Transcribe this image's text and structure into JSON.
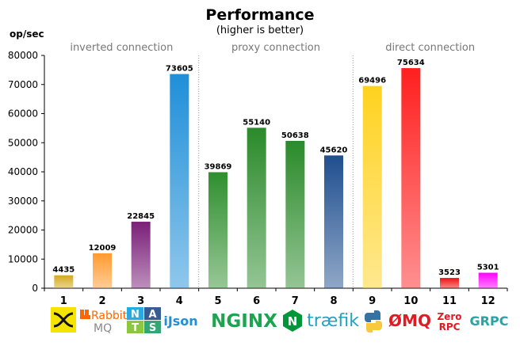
{
  "chart_data": {
    "type": "bar",
    "title": "Performance",
    "subtitle": "(higher is better)",
    "ylabel": "op/sec",
    "ylim": [
      0,
      80000
    ],
    "yticks": [
      0,
      10000,
      20000,
      30000,
      40000,
      50000,
      60000,
      70000,
      80000
    ],
    "categories": [
      "1",
      "2",
      "3",
      "4",
      "5",
      "6",
      "7",
      "8",
      "9",
      "10",
      "11",
      "12"
    ],
    "values": [
      4435,
      12009,
      22845,
      73605,
      39869,
      55140,
      50638,
      45620,
      69496,
      75634,
      3523,
      5301
    ],
    "bar_colors": [
      "#d4aa1e",
      "#ff9a2e",
      "#7a1f78",
      "#1f8fd8",
      "#2f8f2f",
      "#2a8a2a",
      "#2a8a2a",
      "#1f4f8f",
      "#ffd21f",
      "#ff1f1f",
      "#ee1111",
      "#ff00ff"
    ],
    "groups": [
      {
        "label": "inverted connection",
        "categories": [
          "1",
          "2",
          "3",
          "4"
        ]
      },
      {
        "label": "proxy connection",
        "categories": [
          "5",
          "6",
          "7",
          "8"
        ]
      },
      {
        "label": "direct connection",
        "categories": [
          "9",
          "10",
          "11",
          "12"
        ]
      }
    ],
    "grid": false,
    "legend": "none"
  },
  "logos": [
    {
      "category": "1",
      "icon": "zeromq-cross-icon",
      "text": ""
    },
    {
      "category": "2",
      "icon": "rabbitmq-icon",
      "text": "Rabbit",
      "text2": "MQ"
    },
    {
      "category": "3",
      "icon": "nats-icon",
      "letters": [
        "N",
        "A",
        "T",
        "S"
      ]
    },
    {
      "category": "4",
      "icon": "ijson-icon",
      "text": "iJson"
    },
    {
      "category": "5",
      "icon": "nginx-icon",
      "text": "NGINX"
    },
    {
      "category": "6",
      "icon": "nginx-n-icon",
      "text": "N"
    },
    {
      "category": "7",
      "icon": "traefik-icon",
      "text": "træfik"
    },
    {
      "category": "8",
      "icon": "python-icon",
      "text": ""
    },
    {
      "category": "9",
      "icon": "zeromq-icon",
      "text": "ØMQ"
    },
    {
      "category": "10",
      "icon": "zerorpc-icon",
      "text": "Zero",
      "text2": "RPC"
    },
    {
      "category": "11",
      "icon": "grpc-icon",
      "text": "GRPC"
    }
  ]
}
